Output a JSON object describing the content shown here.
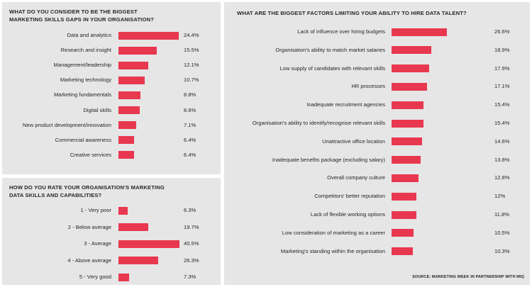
{
  "colors": {
    "bar": "#e8384f",
    "panel": "#e6e6e6"
  },
  "source": "SOURCE: MARKETING WEEK IN PARTNERSHIP WITH MIQ",
  "chart_data": [
    {
      "id": "skills-gaps",
      "type": "bar",
      "orientation": "horizontal",
      "title_lines": [
        "WHAT DO YOU CONSIDER TO BE THE BIGGEST",
        "MARKETING SKILLS GAPS IN YOUR ORGANISATION?"
      ],
      "categories": [
        "Data and analytics",
        "Research and insight",
        "Management/leadership",
        "Marketing technology",
        "Marketing fundamentals",
        "Digital skills",
        "New product development/innovation",
        "Commercial awareness",
        "Creative services"
      ],
      "values": [
        24.4,
        15.5,
        12.1,
        10.7,
        8.8,
        8.6,
        7.1,
        6.4,
        6.4
      ],
      "value_labels": [
        "24.4%",
        "15.5%",
        "12.1%",
        "10.7%",
        "8.8%",
        "8.6%",
        "7.1%",
        "6.4%",
        "6.4%"
      ],
      "unit": "%"
    },
    {
      "id": "data-skills-rating",
      "type": "bar",
      "orientation": "horizontal",
      "title_lines": [
        "HOW DO YOU RATE YOUR ORGANISATION'S MARKETING",
        "DATA SKILLS AND CAPABILITIES?"
      ],
      "categories": [
        "1 - Very poor",
        "2 - Below average",
        "3 - Average",
        "4 - Above average",
        "5 - Very good"
      ],
      "values": [
        6.3,
        19.7,
        40.5,
        26.3,
        7.3
      ],
      "value_labels": [
        "6.3%",
        "19.7%",
        "40.5%",
        "26.3%",
        "7.3%"
      ],
      "unit": "%"
    },
    {
      "id": "hiring-factors",
      "type": "bar",
      "orientation": "horizontal",
      "title_lines": [
        "WHAT ARE THE BIGGEST FACTORS LIMITING YOUR ABILITY TO HIRE DATA TALENT?"
      ],
      "categories": [
        "Lack of influence over hiring budgets",
        "Organisation's ability to match market salaries",
        "Low supply of candidates with relevant skills",
        "HR processes",
        "Inadequate recruitment agencies",
        "Organisation's ability to identify/recognise relevant skills",
        "Unattractive office location",
        "Inadequate benefits package (excluding salary)",
        "Overall company culture",
        "Competitors' better reputation",
        "Lack of flexible working options",
        "Low consideration of marketing as a career",
        "Marketing's standing within the organisation"
      ],
      "values": [
        26.6,
        18.9,
        17.9,
        17.1,
        15.4,
        15.4,
        14.6,
        13.8,
        12.8,
        12,
        11.8,
        10.5,
        10.3
      ],
      "value_labels": [
        "26.6%",
        "18.9%",
        "17.9%",
        "17.1%",
        "15.4%",
        "15.4%",
        "14.6%",
        "13.8%",
        "12.8%",
        "12%",
        "11.8%",
        "10.5%",
        "10.3%"
      ],
      "unit": "%"
    }
  ]
}
